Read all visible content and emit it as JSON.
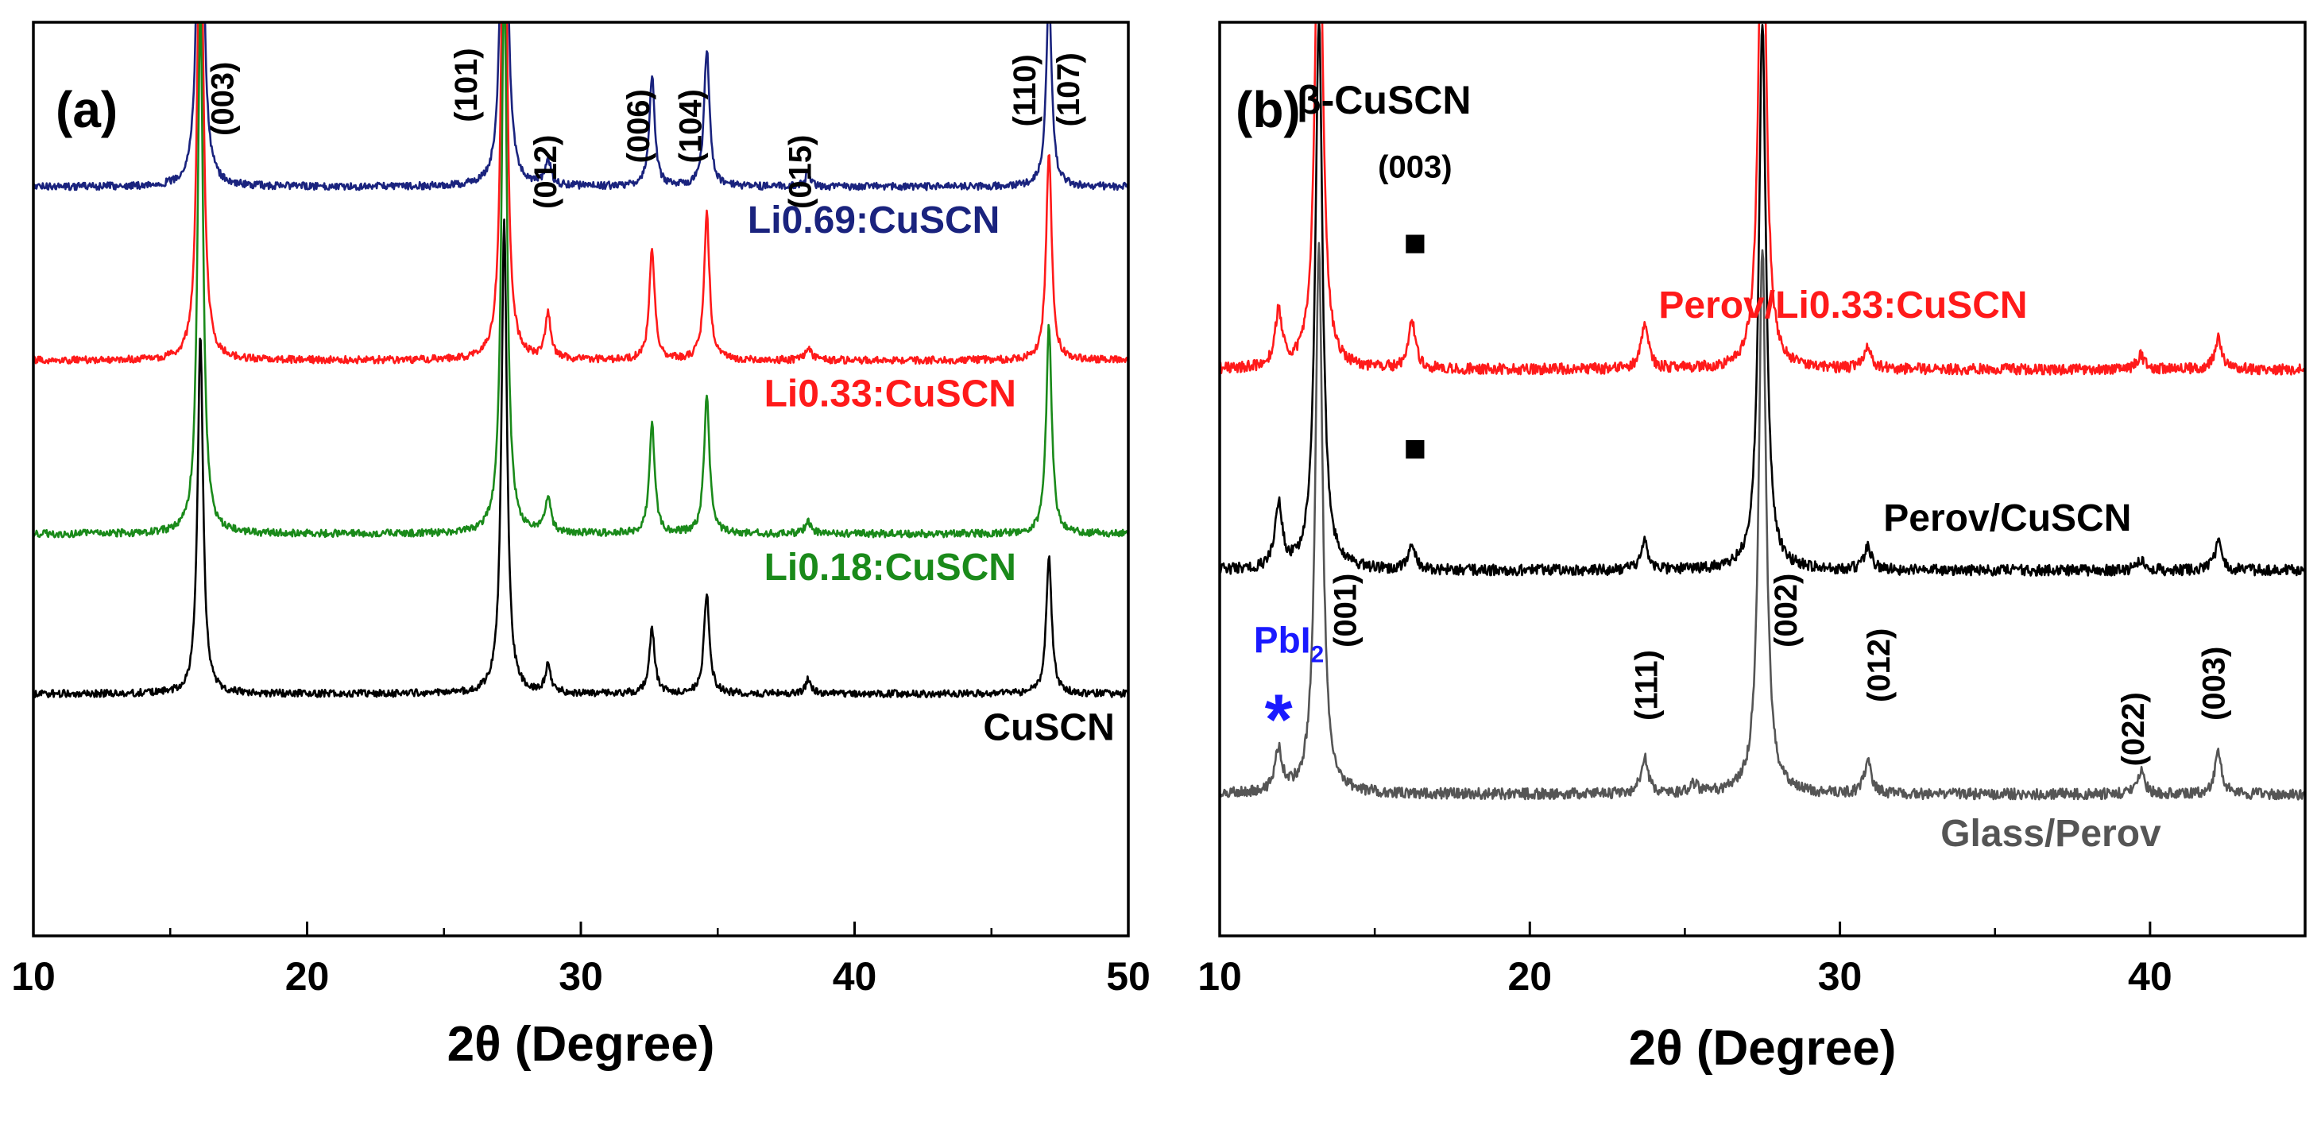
{
  "chart_data": [
    {
      "panel": "(a)",
      "type": "line",
      "title": "",
      "xlabel": "2θ (Degree)",
      "ylabel": "",
      "xlim": [
        10,
        50
      ],
      "xticks": [
        10,
        20,
        30,
        40,
        50
      ],
      "xtick_labels": [
        "10",
        "20",
        "30",
        "40",
        "50"
      ],
      "grid": false,
      "peak_shape_width": 0.12,
      "series": [
        {
          "name": "Li0.69:CuSCN",
          "label": "Li0.69:CuSCN",
          "color": "#1a237e",
          "baseline": 0.18,
          "noise": 0.004,
          "label_x": 40.7,
          "peaks": [
            {
              "x": 16.1,
              "h": 0.54
            },
            {
              "x": 27.2,
              "h": 0.57
            },
            {
              "x": 28.8,
              "h": 0.03
            },
            {
              "x": 32.6,
              "h": 0.12
            },
            {
              "x": 34.6,
              "h": 0.15
            },
            {
              "x": 38.3,
              "h": 0.015
            },
            {
              "x": 47.1,
              "h": 0.21
            }
          ]
        },
        {
          "name": "Li0.33:CuSCN",
          "label": "Li0.33:CuSCN",
          "color": "#ff1a1a",
          "baseline": 0.37,
          "noise": 0.004,
          "label_x": 41.3,
          "peaks": [
            {
              "x": 16.1,
              "h": 0.58
            },
            {
              "x": 27.2,
              "h": 0.62
            },
            {
              "x": 28.8,
              "h": 0.05
            },
            {
              "x": 32.6,
              "h": 0.12
            },
            {
              "x": 34.6,
              "h": 0.16
            },
            {
              "x": 38.3,
              "h": 0.015
            },
            {
              "x": 47.1,
              "h": 0.23
            }
          ]
        },
        {
          "name": "Li0.18:CuSCN",
          "label": "Li0.18:CuSCN",
          "color": "#1a8a1a",
          "baseline": 0.56,
          "noise": 0.004,
          "label_x": 41.3,
          "peaks": [
            {
              "x": 16.1,
              "h": 0.58
            },
            {
              "x": 27.2,
              "h": 0.62
            },
            {
              "x": 28.8,
              "h": 0.04
            },
            {
              "x": 32.6,
              "h": 0.12
            },
            {
              "x": 34.6,
              "h": 0.15
            },
            {
              "x": 38.3,
              "h": 0.015
            },
            {
              "x": 47.1,
              "h": 0.23
            }
          ]
        },
        {
          "name": "CuSCN",
          "label": "CuSCN",
          "color": "#000000",
          "baseline": 0.735,
          "noise": 0.004,
          "label_x": 47.1,
          "peaks": [
            {
              "x": 16.1,
              "h": 0.39
            },
            {
              "x": 27.2,
              "h": 0.52
            },
            {
              "x": 28.8,
              "h": 0.03
            },
            {
              "x": 32.6,
              "h": 0.07
            },
            {
              "x": 34.6,
              "h": 0.11
            },
            {
              "x": 38.3,
              "h": 0.015
            },
            {
              "x": 47.1,
              "h": 0.15
            }
          ]
        }
      ],
      "annotations": [
        {
          "text": "(003)",
          "x": 17.3,
          "y": 0.02
        },
        {
          "text": "(101)",
          "x": 26.2,
          "y": 0.005
        },
        {
          "text": "(012)",
          "x": 29.1,
          "y": 0.1
        },
        {
          "text": "(006)",
          "x": 32.5,
          "y": 0.05
        },
        {
          "text": "(104)",
          "x": 34.4,
          "y": 0.05
        },
        {
          "text": "(015)",
          "x": 38.4,
          "y": 0.1
        },
        {
          "text": "(110)",
          "x": 46.6,
          "y": 0.01
        },
        {
          "text": "(107)",
          "x": 48.2,
          "y": 0.01
        }
      ]
    },
    {
      "panel": "(b)",
      "type": "line",
      "title": "",
      "xlabel": "2θ (Degree)",
      "ylabel": "",
      "xlim": [
        10,
        45
      ],
      "xticks": [
        10,
        20,
        30,
        40
      ],
      "xtick_labels": [
        "10",
        "20",
        "30",
        "40"
      ],
      "grid": false,
      "peak_shape_width": 0.14,
      "series": [
        {
          "name": "Perov/Li0.33:CuSCN",
          "label": "Perov/Li0.33:CuSCN",
          "color": "#ff1a1a",
          "baseline": 0.38,
          "noise": 0.006,
          "label_x": 30.1,
          "peaks": [
            {
              "x": 11.9,
              "h": 0.06
            },
            {
              "x": 13.2,
              "h": 0.6
            },
            {
              "x": 16.2,
              "h": 0.05
            },
            {
              "x": 23.7,
              "h": 0.05
            },
            {
              "x": 27.5,
              "h": 0.6
            },
            {
              "x": 30.9,
              "h": 0.025
            },
            {
              "x": 39.7,
              "h": 0.015
            },
            {
              "x": 42.2,
              "h": 0.035
            }
          ]
        },
        {
          "name": "Perov/CuSCN",
          "label": "Perov/CuSCN",
          "color": "#000000",
          "baseline": 0.6,
          "noise": 0.006,
          "label_x": 35.4,
          "peaks": [
            {
              "x": 11.9,
              "h": 0.07
            },
            {
              "x": 13.2,
              "h": 0.6
            },
            {
              "x": 16.2,
              "h": 0.025
            },
            {
              "x": 23.7,
              "h": 0.03
            },
            {
              "x": 27.5,
              "h": 0.6
            },
            {
              "x": 30.9,
              "h": 0.025
            },
            {
              "x": 39.7,
              "h": 0.012
            },
            {
              "x": 42.2,
              "h": 0.03
            }
          ]
        },
        {
          "name": "Glass/Perov",
          "label": "Glass/Perov",
          "color": "#555555",
          "baseline": 0.845,
          "noise": 0.006,
          "label_x": 36.8,
          "peaks": [
            {
              "x": 11.9,
              "h": 0.045
            },
            {
              "x": 13.2,
              "h": 0.6
            },
            {
              "x": 23.7,
              "h": 0.04
            },
            {
              "x": 25.3,
              "h": 0.01
            },
            {
              "x": 27.5,
              "h": 0.6
            },
            {
              "x": 30.9,
              "h": 0.035
            },
            {
              "x": 39.7,
              "h": 0.025
            },
            {
              "x": 42.2,
              "h": 0.045
            }
          ]
        }
      ],
      "phase_labels": [
        {
          "text": "β-CuSCN",
          "x": 15.3,
          "y": 0.1
        },
        {
          "text": "(003)",
          "x": 16.3,
          "y": 0.17
        }
      ],
      "markers": [
        {
          "symbol": "■",
          "x": 16.3,
          "y": 0.255
        },
        {
          "symbol": "■",
          "x": 16.3,
          "y": 0.48
        }
      ],
      "pbi2_label": {
        "text": "PbI",
        "subscript": "2",
        "x": 11.1,
        "y": 0.69,
        "color": "#1a1aff"
      },
      "pbi2_marker": {
        "symbol": "*",
        "x": 11.9,
        "y": 0.79,
        "color": "#1a1aff"
      },
      "annotations": [
        {
          "text": "(001)",
          "x": 14.4,
          "y": 0.58
        },
        {
          "text": "(111)",
          "x": 24.1,
          "y": 0.66
        },
        {
          "text": "(002)",
          "x": 28.6,
          "y": 0.58
        },
        {
          "text": "(012)",
          "x": 31.6,
          "y": 0.64
        },
        {
          "text": "(022)",
          "x": 39.8,
          "y": 0.71
        },
        {
          "text": "(003)",
          "x": 42.4,
          "y": 0.66
        }
      ]
    }
  ]
}
